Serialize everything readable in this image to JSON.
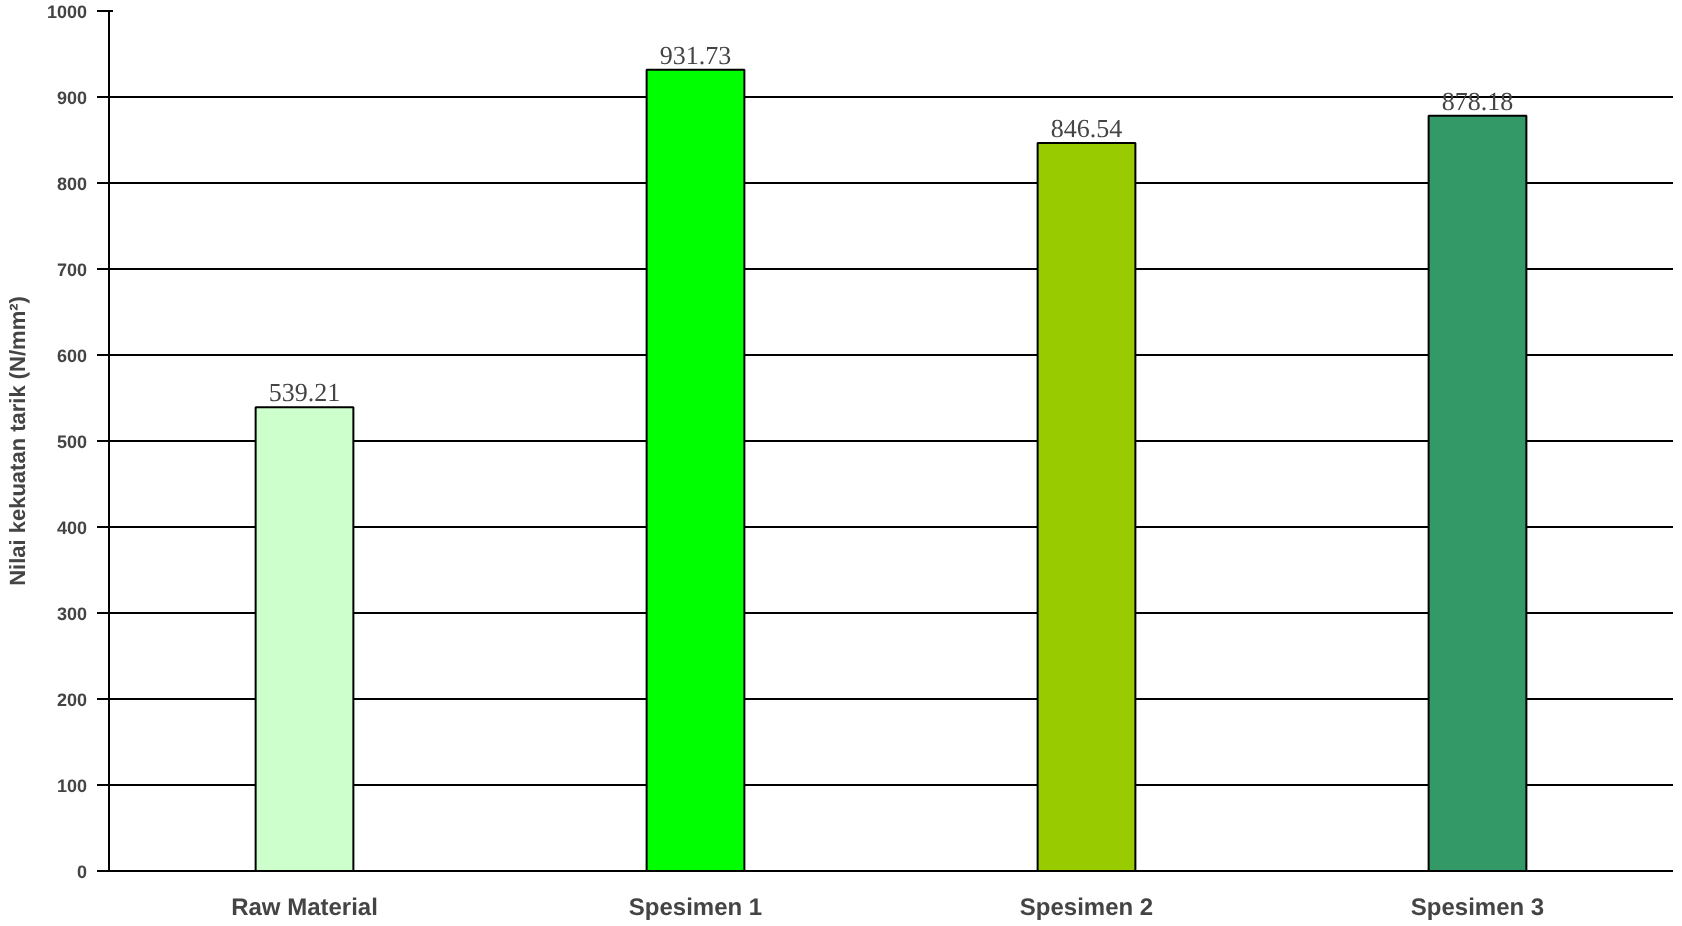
{
  "chart_data": {
    "type": "bar",
    "ylabel": "Nilai kekuatan tarik (N/mm²)",
    "categories": [
      "Raw Material",
      "Spesimen 1",
      "Spesimen 2",
      "Spesimen 3"
    ],
    "values": [
      539.21,
      931.73,
      846.54,
      878.18
    ],
    "colors": [
      "#ccffcc",
      "#00ff00",
      "#99cc00",
      "#339966"
    ],
    "ylim": [
      0,
      1000
    ],
    "yticks": [
      0,
      100,
      200,
      300,
      400,
      500,
      600,
      700,
      800,
      900,
      1000
    ],
    "grid": "y",
    "data_labels": true
  }
}
